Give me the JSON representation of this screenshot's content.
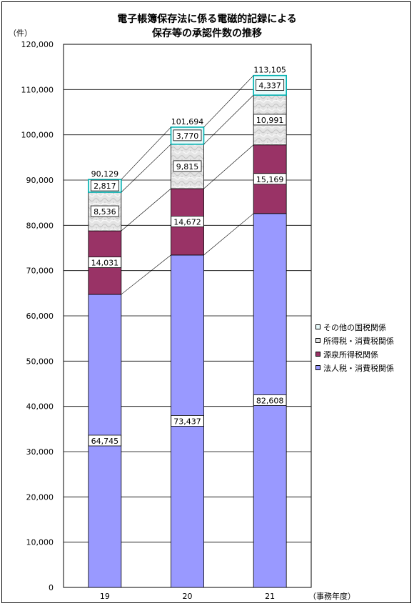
{
  "title_line1": "電子帳簿保存法に係る電磁的記録による",
  "title_line2": "保存等の承認件数の推移",
  "y_unit_label": "（件）",
  "x_unit_label": "（事務年度）",
  "legend": [
    {
      "label": "その他の国税関係",
      "color": "#e8fbfb"
    },
    {
      "label": "所得税・消費税関係",
      "color": "#e6e6e6"
    },
    {
      "label": "源泉所得税関係",
      "color": "#993366"
    },
    {
      "label": "法人税・消費税関係",
      "color": "#9999ff"
    }
  ],
  "chart_data": {
    "type": "bar",
    "stacked": true,
    "categories": [
      "19",
      "20",
      "21"
    ],
    "ylim": [
      0,
      120000
    ],
    "y_ticks": [
      "0",
      "10,000",
      "20,000",
      "30,000",
      "40,000",
      "50,000",
      "60,000",
      "70,000",
      "80,000",
      "90,000",
      "100,000",
      "110,000",
      "120,000"
    ],
    "series": [
      {
        "name": "法人税・消費税関係",
        "values": [
          64745,
          73437,
          82608
        ],
        "labels": [
          "64,745",
          "73,437",
          "82,608"
        ],
        "color": "#9999ff"
      },
      {
        "name": "源泉所得税関係",
        "values": [
          14031,
          14672,
          15169
        ],
        "labels": [
          "14,031",
          "14,672",
          "15,169"
        ],
        "color": "#993366"
      },
      {
        "name": "所得税・消費税関係",
        "values": [
          8536,
          9815,
          10991
        ],
        "labels": [
          "8,536",
          "9,815",
          "10,991"
        ],
        "color": "#e6e6e6"
      },
      {
        "name": "その他の国税関係",
        "values": [
          2817,
          3770,
          4337
        ],
        "labels": [
          "2,817",
          "3,770",
          "4,337"
        ],
        "color": "#e8fbfb"
      }
    ],
    "totals": [
      "90,129",
      "101,694",
      "113,105"
    ]
  }
}
